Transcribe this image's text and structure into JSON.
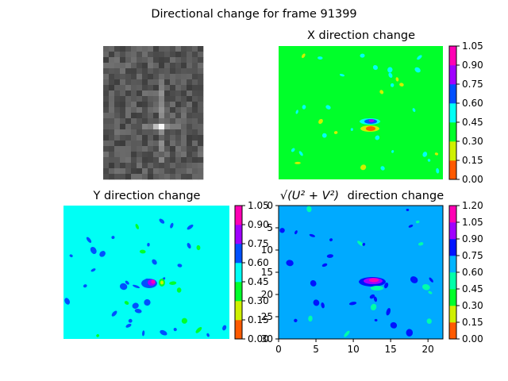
{
  "figure": {
    "suptitle": "Directional change for frame 91399"
  },
  "chart_data": [
    {
      "type": "heatmap",
      "id": "raw-frame",
      "title": "",
      "colormap": "grayscale",
      "grid": false,
      "axes_visible": false,
      "description_values": "grayscale frame crop; bright spot near center with faint vertical streak"
    },
    {
      "type": "heatmap",
      "id": "x-change",
      "title": "X direction change",
      "colormap": "hsv",
      "axes_visible": false,
      "levels": [
        0.0,
        0.15,
        0.3,
        0.45,
        0.6,
        0.75,
        0.9,
        1.05
      ],
      "colorbar_ticks": [
        "0.00",
        "0.15",
        "0.30",
        "0.45",
        "0.60",
        "0.75",
        "0.90",
        "1.05"
      ],
      "colorbar_colors": [
        "#ff5a00",
        "#cff000",
        "#00ff2a",
        "#00fff5",
        "#0050ff",
        "#a000ff",
        "#ff00b4"
      ],
      "background_color": "#00ff2a"
    },
    {
      "type": "heatmap",
      "id": "y-change",
      "title": "Y direction change",
      "colormap": "hsv",
      "axes_visible": false,
      "levels": [
        0.0,
        0.15,
        0.3,
        0.45,
        0.6,
        0.75,
        0.9,
        1.05
      ],
      "colorbar_ticks": [
        "0.00",
        "0.15",
        "0.30",
        "0.45",
        "0.60",
        "0.75",
        "0.90",
        "1.05"
      ],
      "colorbar_colors": [
        "#ff5a00",
        "#cff000",
        "#00ff2a",
        "#00fff5",
        "#0050ff",
        "#a000ff",
        "#ff00b4"
      ],
      "background_color": "#00fff5"
    },
    {
      "type": "heatmap",
      "id": "magnitude-change",
      "title_math": "√(U² + V²)",
      "title_suffix": "direction change",
      "colormap": "hsv",
      "axes_visible": true,
      "xlim": [
        0,
        22
      ],
      "ylim": [
        30,
        0
      ],
      "xticks": [
        "0",
        "5",
        "10",
        "15",
        "20"
      ],
      "yticks": [
        "0",
        "5",
        "10",
        "15",
        "20",
        "25",
        "30"
      ],
      "levels": [
        0.0,
        0.15,
        0.3,
        0.45,
        0.6,
        0.75,
        0.9,
        1.05,
        1.2
      ],
      "colorbar_ticks": [
        "0.00",
        "0.15",
        "0.30",
        "0.45",
        "0.60",
        "0.75",
        "0.90",
        "1.05",
        "1.20"
      ],
      "colorbar_colors": [
        "#ff5a00",
        "#cff000",
        "#00ff2a",
        "#00ffaa",
        "#00b4ff",
        "#0014ff",
        "#a000ff",
        "#ff00b4"
      ],
      "background_color": "#00aaff"
    }
  ]
}
